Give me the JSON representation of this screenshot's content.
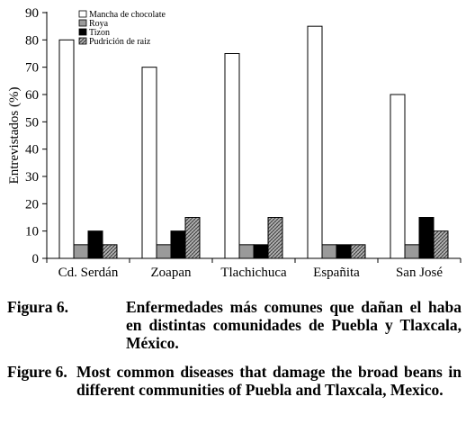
{
  "chart_data": {
    "type": "bar",
    "categories": [
      "Cd. Serdán",
      "Zoapan",
      "Tlachichuca",
      "Españita",
      "San José"
    ],
    "series": [
      {
        "name": "Mancha de chocolate",
        "values": [
          80,
          70,
          75,
          85,
          60
        ],
        "fill": "#ffffff"
      },
      {
        "name": "Roya",
        "values": [
          5,
          5,
          5,
          5,
          5
        ],
        "fill": "#9a9a9a"
      },
      {
        "name": "Tizon",
        "values": [
          10,
          10,
          5,
          5,
          15
        ],
        "fill": "#000000"
      },
      {
        "name": "Pudrición de raiz",
        "values": [
          5,
          15,
          15,
          5,
          10
        ],
        "fill": "hatch"
      }
    ],
    "ylabel": "Entrevistados (%)",
    "xlabel": "",
    "ylim": [
      0,
      90
    ],
    "yticks": [
      0,
      10,
      20,
      30,
      40,
      50,
      60,
      70,
      80,
      90
    ],
    "grid": false,
    "legend": "top-left"
  },
  "captions": {
    "es_label": "Figura 6.",
    "es_text": "Enfermedades más comunes que dañan el haba en distintas comunidades de Puebla y Tlaxcala, México.",
    "en_label": "Figure 6.",
    "en_text": "Most common diseases that damage the broad beans in different communities of Puebla and Tlaxcala, Mexico."
  }
}
